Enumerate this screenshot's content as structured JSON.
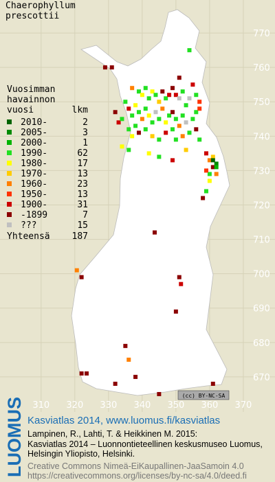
{
  "map": {
    "title": [
      "Chaerophyllum",
      "prescottii"
    ],
    "legend_heading": [
      "Vuosimman",
      "havainnon",
      "vuosi"
    ],
    "count_heading": "lkm",
    "legend": [
      {
        "label": "2010-",
        "count": 2,
        "color": "#006400"
      },
      {
        "label": "2005-",
        "count": 3,
        "color": "#008a00"
      },
      {
        "label": "2000-",
        "count": 1,
        "color": "#00b400"
      },
      {
        "label": "1990-",
        "count": 62,
        "color": "#22e022"
      },
      {
        "label": "1980-",
        "count": 17,
        "color": "#ffff00"
      },
      {
        "label": "1970-",
        "count": 13,
        "color": "#ffcc00"
      },
      {
        "label": "1960-",
        "count": 23,
        "color": "#ff8000"
      },
      {
        "label": "1950-",
        "count": 13,
        "color": "#ff3300"
      },
      {
        "label": "1900-",
        "count": 31,
        "color": "#cc0000"
      },
      {
        "label": "-1899",
        "count": 7,
        "color": "#8b0000"
      },
      {
        "label": "???",
        "count": 15,
        "color": "#c0c0c0"
      }
    ],
    "total_label": "Yhteensä",
    "total": 187,
    "xlim": [
      297.8,
      379.4
    ],
    "ylim": [
      659.8,
      779.6
    ],
    "xticks": [
      310,
      320,
      330,
      340,
      350,
      360,
      370
    ],
    "yticks": [
      670,
      680,
      690,
      700,
      710,
      720,
      730,
      740,
      750,
      760,
      770
    ],
    "points": [
      [
        354,
        765,
        3
      ],
      [
        355,
        755,
        8
      ],
      [
        351,
        757,
        9
      ],
      [
        329,
        760,
        9
      ],
      [
        331,
        760,
        9
      ],
      [
        337,
        754,
        6
      ],
      [
        339,
        753,
        3
      ],
      [
        340,
        752,
        4
      ],
      [
        341,
        754,
        3
      ],
      [
        342,
        751,
        3
      ],
      [
        343,
        753,
        4
      ],
      [
        344,
        752,
        3
      ],
      [
        345,
        750,
        5
      ],
      [
        346,
        753,
        9
      ],
      [
        347,
        751,
        3
      ],
      [
        348,
        752,
        8
      ],
      [
        349,
        754,
        9
      ],
      [
        350,
        752,
        8
      ],
      [
        351,
        751,
        10
      ],
      [
        352,
        753,
        3
      ],
      [
        353,
        749,
        3
      ],
      [
        354,
        751,
        10
      ],
      [
        356,
        752,
        3
      ],
      [
        357,
        750,
        7
      ],
      [
        335,
        750,
        3
      ],
      [
        336,
        748,
        8
      ],
      [
        337,
        746,
        3
      ],
      [
        338,
        749,
        4
      ],
      [
        339,
        747,
        3
      ],
      [
        340,
        745,
        6
      ],
      [
        341,
        748,
        3
      ],
      [
        342,
        746,
        4
      ],
      [
        343,
        744,
        3
      ],
      [
        344,
        747,
        10
      ],
      [
        345,
        745,
        3
      ],
      [
        346,
        748,
        6
      ],
      [
        347,
        744,
        4
      ],
      [
        348,
        746,
        3
      ],
      [
        349,
        747,
        9
      ],
      [
        350,
        745,
        3
      ],
      [
        351,
        743,
        6
      ],
      [
        352,
        746,
        3
      ],
      [
        353,
        744,
        10
      ],
      [
        355,
        745,
        3
      ],
      [
        356,
        747,
        3
      ],
      [
        357,
        748,
        7
      ],
      [
        336,
        742,
        3
      ],
      [
        337,
        740,
        4
      ],
      [
        338,
        743,
        3
      ],
      [
        339,
        741,
        9
      ],
      [
        341,
        742,
        3
      ],
      [
        343,
        740,
        5
      ],
      [
        345,
        739,
        3
      ],
      [
        347,
        741,
        8
      ],
      [
        349,
        742,
        3
      ],
      [
        350,
        739,
        3
      ],
      [
        352,
        740,
        6
      ],
      [
        354,
        741,
        3
      ],
      [
        356,
        742,
        9
      ],
      [
        357,
        739,
        3
      ],
      [
        333,
        744,
        8
      ],
      [
        334,
        745,
        3
      ],
      [
        332,
        747,
        9
      ],
      [
        359,
        735,
        8
      ],
      [
        360,
        733,
        6
      ],
      [
        361,
        731,
        9
      ],
      [
        360,
        729,
        3
      ],
      [
        362,
        732,
        1
      ],
      [
        359,
        730,
        7
      ],
      [
        361,
        734,
        5
      ],
      [
        362,
        729,
        6
      ],
      [
        360,
        727,
        4
      ],
      [
        359,
        724,
        3
      ],
      [
        358,
        722,
        9
      ],
      [
        361,
        733,
        0
      ],
      [
        362,
        731,
        2
      ],
      [
        334,
        737,
        4
      ],
      [
        336,
        736,
        3
      ],
      [
        342,
        735,
        4
      ],
      [
        345,
        734,
        3
      ],
      [
        349,
        733,
        8
      ],
      [
        353,
        736,
        5
      ],
      [
        320.6,
        701,
        6
      ],
      [
        322,
        699,
        9
      ],
      [
        343.7,
        712,
        9
      ],
      [
        351,
        699,
        9
      ],
      [
        351.5,
        697,
        8
      ],
      [
        350,
        689,
        9
      ],
      [
        335,
        679,
        9
      ],
      [
        336,
        675,
        6
      ],
      [
        322,
        671,
        9
      ],
      [
        323.5,
        671,
        9
      ],
      [
        332,
        668,
        9
      ],
      [
        338,
        670,
        9
      ],
      [
        345,
        665,
        9
      ],
      [
        361,
        668,
        9
      ]
    ],
    "cc_badge": "(cc) BY-NC-SA",
    "brand": "LUOMUS",
    "footer": {
      "headline": "Kasviatlas 2014, www.luomus.fi/kasviatlas",
      "citation": [
        "Lampinen, R., Lahti, T. & Heikkinen M. 2015:",
        "Kasviatlas 2014 – Luonnontieteellinen keskusmuseo Luomus,",
        "Helsingin Yliopisto, Helsinki."
      ],
      "license": [
        "Creative Commons Nimeä-EiKaupallinen-JaaSamoin 4.0",
        "https://creativecommons.org/licenses/by-nc-sa/4.0/deed.fi"
      ]
    }
  }
}
